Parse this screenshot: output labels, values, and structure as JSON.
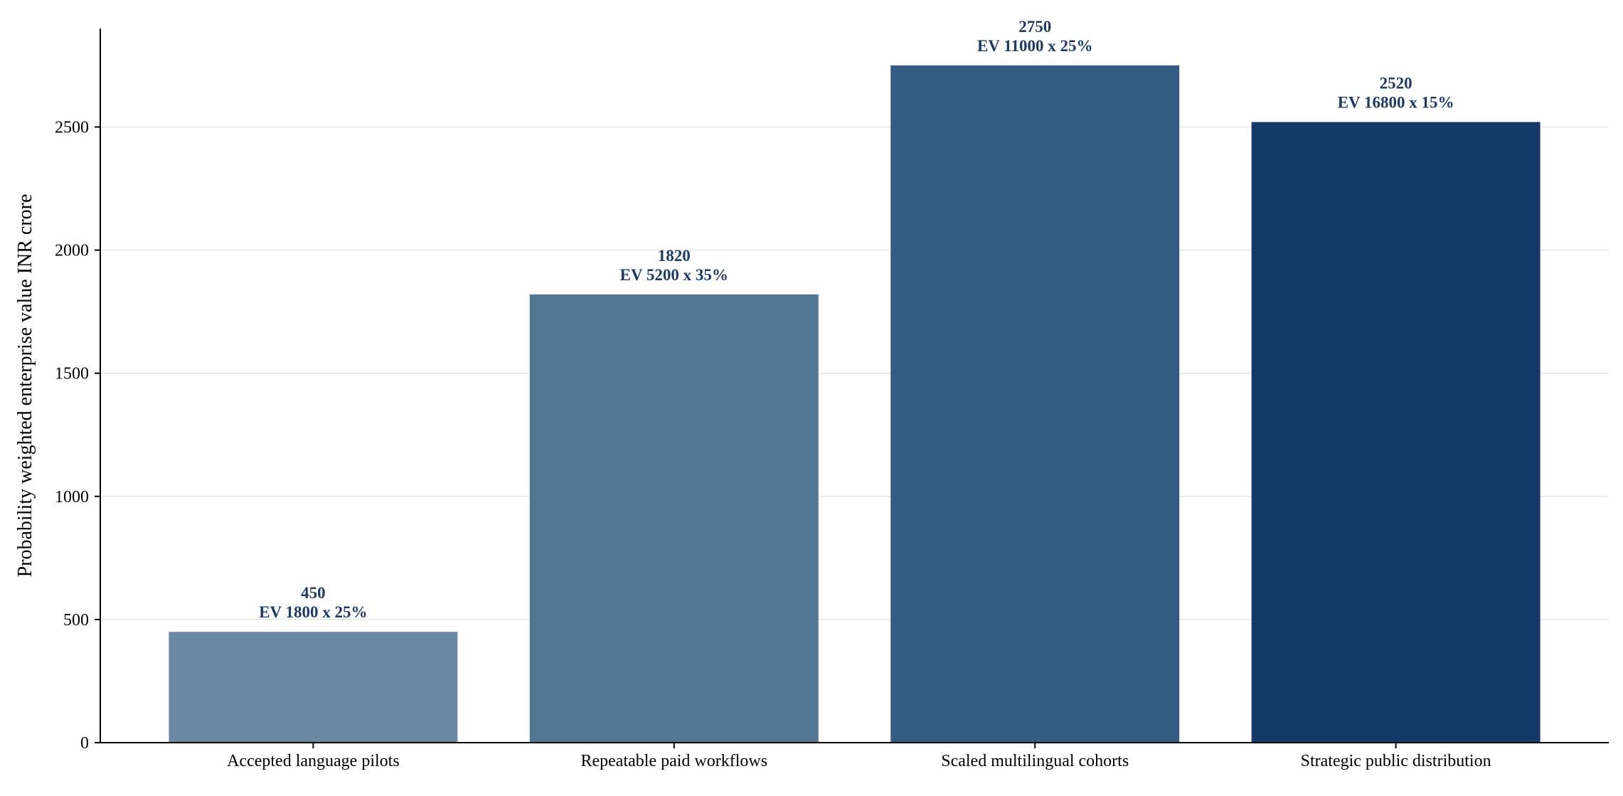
{
  "chart_data": {
    "type": "bar",
    "title": "",
    "xlabel": "",
    "ylabel": "Probability weighted enterprise value INR crore",
    "categories": [
      "Accepted language pilots",
      "Repeatable paid workflows",
      "Scaled multilingual cohorts",
      "Strategic public distribution"
    ],
    "values": [
      450,
      1820,
      2750,
      2520
    ],
    "annotations": [
      "EV 1800 x 25%",
      "EV 5200 x 35%",
      "EV 11000 x 25%",
      "EV 16800 x 15%"
    ],
    "bar_colors": [
      "#6a87a3",
      "#527592",
      "#325c84",
      "#143968"
    ],
    "label_color": "#1f3b63",
    "ylim": [
      0,
      2900
    ],
    "yticks": [
      0,
      500,
      1000,
      1500,
      2000,
      2500
    ],
    "grid": true,
    "grid_axis": "y",
    "legend": "none"
  }
}
